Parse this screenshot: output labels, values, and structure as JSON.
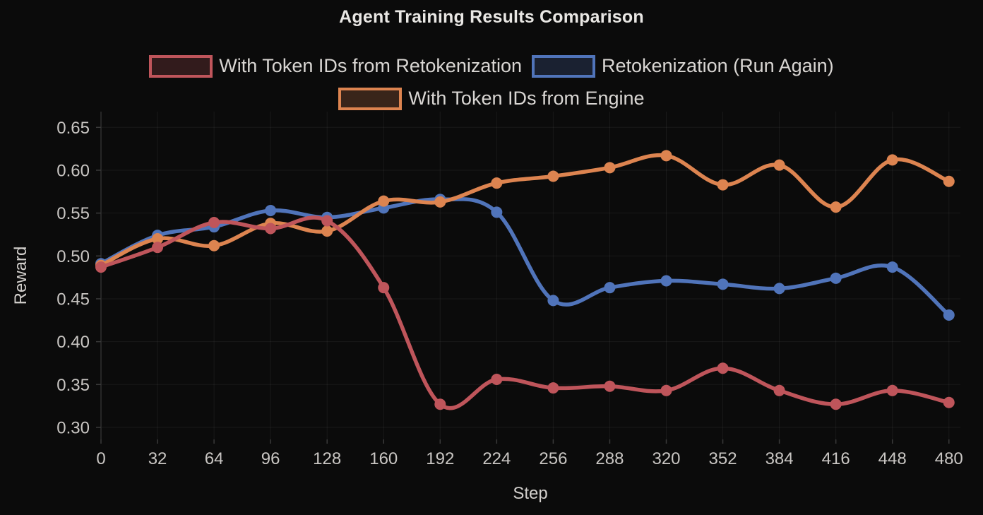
{
  "title": "Agent Training Results Comparison",
  "colors": {
    "background": "#0b0b0b",
    "grid": "rgba(255,255,255,0.06)",
    "axis_line": "#2f2f2f",
    "tick_mark": "#3a3a3a",
    "tick_text": "#c9c6c3",
    "title_text": "#e9e7e4",
    "legend_text": "#d9d6d3"
  },
  "legend": {
    "row1": [
      {
        "label": "With Token IDs from Retokenization",
        "series_index": 0
      },
      {
        "label": "Retokenization (Run Again)",
        "series_index": 1
      }
    ],
    "row2": [
      {
        "label": "With Token IDs from Engine",
        "series_index": 2
      }
    ]
  },
  "chart_data": {
    "type": "line",
    "title": "Agent Training Results Comparison",
    "xlabel": "Step",
    "ylabel": "Reward",
    "x": [
      0,
      32,
      64,
      96,
      128,
      160,
      192,
      224,
      256,
      288,
      320,
      352,
      384,
      416,
      448,
      480
    ],
    "y_ticks": [
      0.3,
      0.35,
      0.4,
      0.45,
      0.5,
      0.55,
      0.6,
      0.65
    ],
    "ylim": [
      0.286,
      0.668
    ],
    "grid": true,
    "legend_position": "top",
    "marker": "circle",
    "line_smoothing": true,
    "series": [
      {
        "name": "With Token IDs from Retokenization",
        "color": "#bf555b",
        "values": [
          0.487,
          0.51,
          0.539,
          0.532,
          0.541,
          0.463,
          0.327,
          0.356,
          0.346,
          0.348,
          0.343,
          0.369,
          0.343,
          0.327,
          0.343,
          0.329
        ]
      },
      {
        "name": "Retokenization (Run Again)",
        "color": "#5074ba",
        "values": [
          0.491,
          0.524,
          0.534,
          0.553,
          0.545,
          0.556,
          0.566,
          0.551,
          0.448,
          0.463,
          0.471,
          0.467,
          0.462,
          0.474,
          0.487,
          0.431
        ]
      },
      {
        "name": "With Token IDs from Engine",
        "color": "#dd8450",
        "values": [
          0.489,
          0.52,
          0.512,
          0.538,
          0.529,
          0.564,
          0.563,
          0.585,
          0.593,
          0.603,
          0.617,
          0.583,
          0.606,
          0.557,
          0.612,
          0.587
        ]
      }
    ]
  }
}
